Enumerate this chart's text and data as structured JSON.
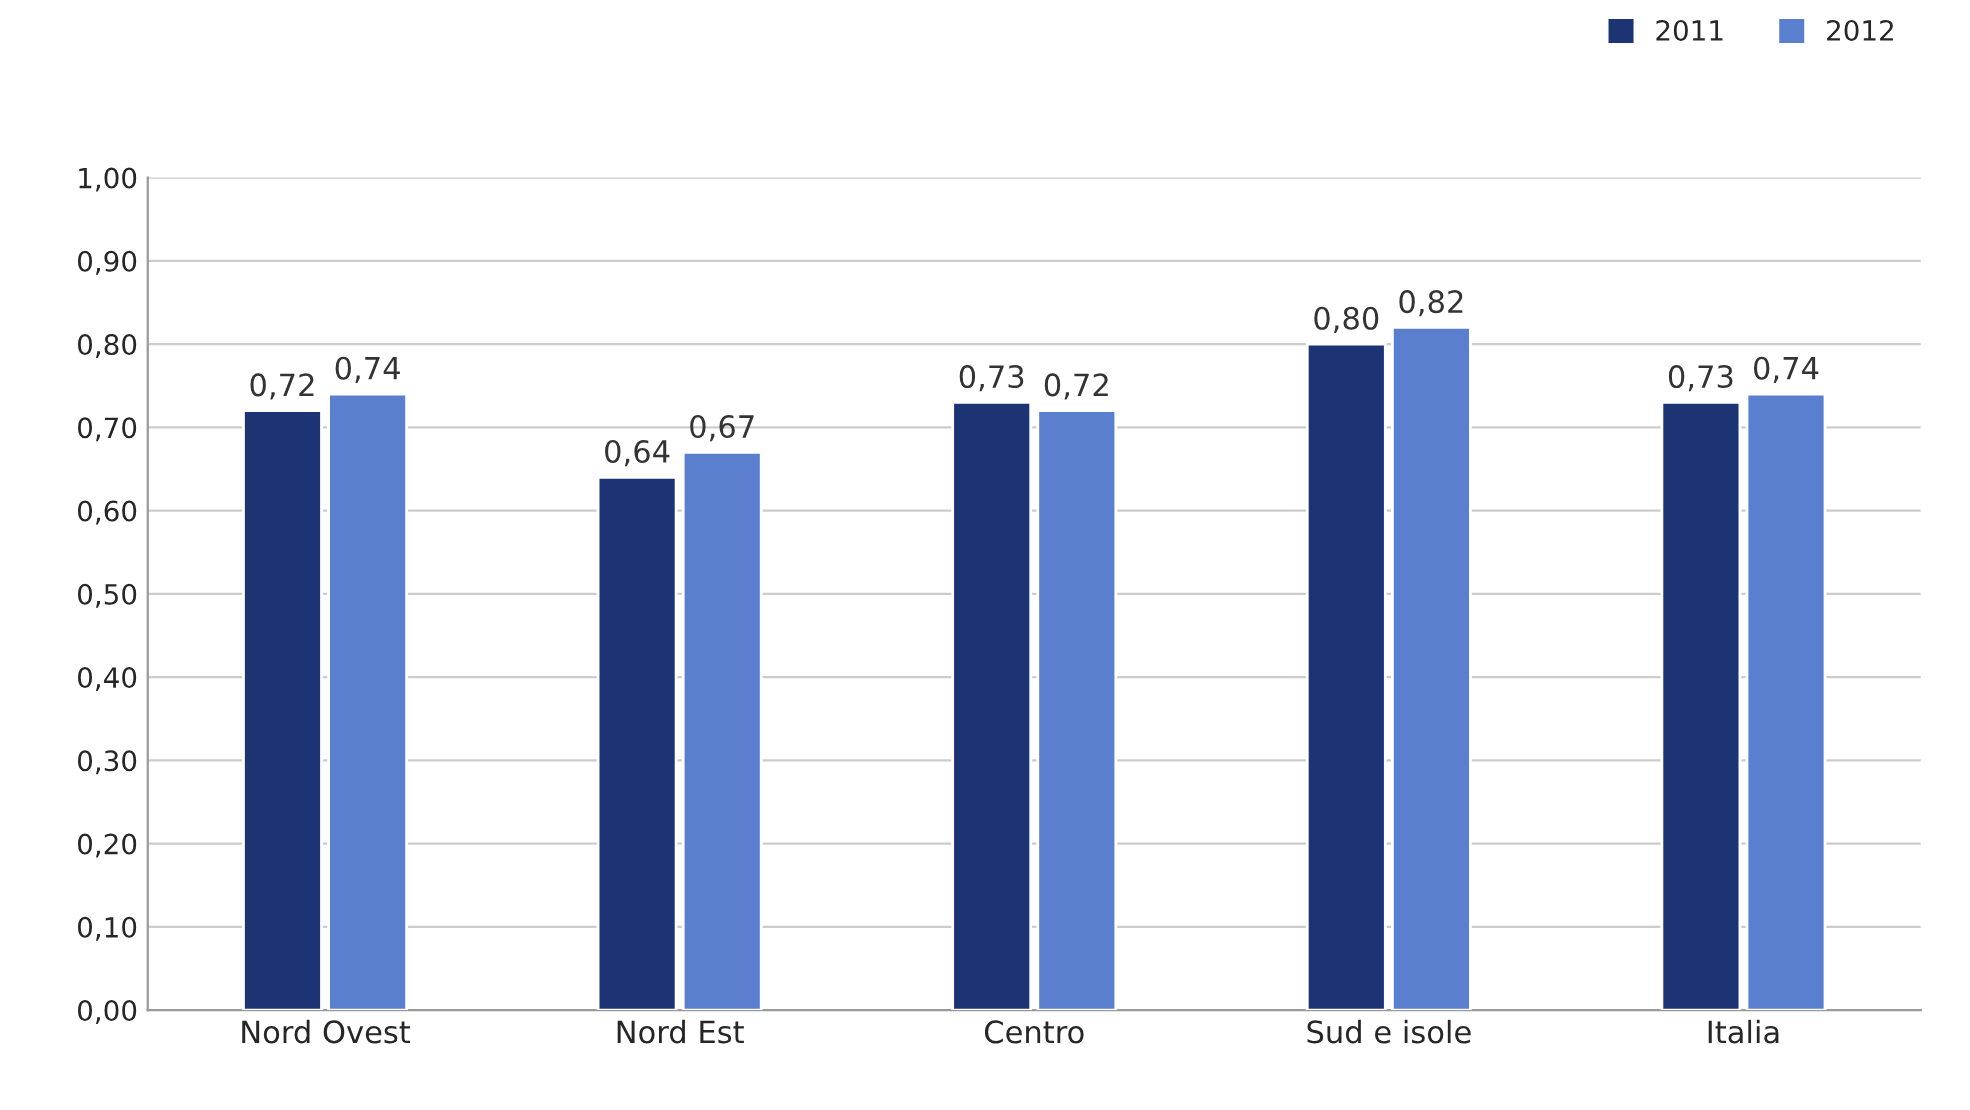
{
  "chart_data": {
    "type": "bar",
    "categories": [
      "Nord Ovest",
      "Nord Est",
      "Centro",
      "Sud e isole",
      "Italia"
    ],
    "series": [
      {
        "name": "2011",
        "color": "#1c3473",
        "values": [
          0.72,
          0.64,
          0.73,
          0.8,
          0.73
        ],
        "value_labels": [
          "0,72",
          "0,64",
          "0,73",
          "0,80",
          "0,73"
        ]
      },
      {
        "name": "2012",
        "color": "#5a7fcf",
        "values": [
          0.74,
          0.67,
          0.72,
          0.82,
          0.74
        ],
        "value_labels": [
          "0,74",
          "0,67",
          "0,72",
          "0,82",
          "0,74"
        ]
      }
    ],
    "ylim": [
      0,
      1.0
    ],
    "yticks": [
      {
        "value": 0,
        "label": "0,00"
      },
      {
        "value": 0.1,
        "label": "0,10"
      },
      {
        "value": 0.2,
        "label": "0,20"
      },
      {
        "value": 0.3,
        "label": "0,30"
      },
      {
        "value": 0.4,
        "label": "0,40"
      },
      {
        "value": 0.5,
        "label": "0,50"
      },
      {
        "value": 0.6,
        "label": "0,60"
      },
      {
        "value": 0.7,
        "label": "0,70"
      },
      {
        "value": 0.8,
        "label": "0,80"
      },
      {
        "value": 0.9,
        "label": "0,90"
      },
      {
        "value": 1.0,
        "label": "1,00"
      }
    ],
    "grid": "y",
    "legend": "top right"
  }
}
